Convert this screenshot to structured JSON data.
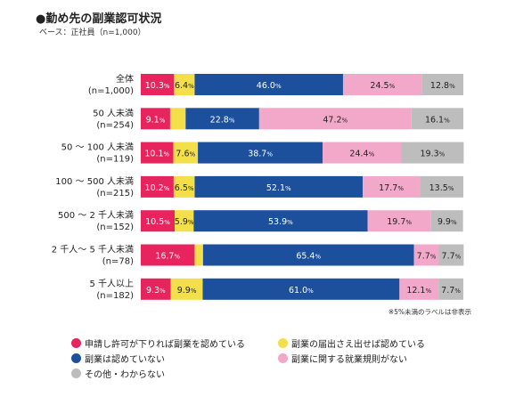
{
  "title": "●勤め先の副業認可状況",
  "subtitle": "ベース：正社員（n=1,000）",
  "note": "※5%未満のラベルは非表示",
  "colors": {
    "申請し許可が下りれば副業を認めている": "#e8245f",
    "副業の届出さえ出せば認めている": "#f2df4a",
    "副業は認めていない": "#1c4f9c",
    "副業に関する就業規則がない": "#f2a8c8",
    "その他・わからない": "#bdbdbd"
  },
  "chart_data": {
    "type": "bar",
    "orientation": "horizontal",
    "stacked": true,
    "percent_stacked": true,
    "categories": [
      [
        "全体",
        "(n=1,000)"
      ],
      [
        "50 人未満",
        "(n=254)"
      ],
      [
        "50 ～ 100 人未満",
        "(n=119)"
      ],
      [
        "100 ～ 500 人未満",
        "(n=215)"
      ],
      [
        "500 ～ 2 千人未満",
        "(n=152)"
      ],
      [
        "2 千人～ 5 千人未満",
        "(n=78)"
      ],
      [
        "5 千人以上",
        "(n=182)"
      ]
    ],
    "series": [
      {
        "name": "申請し許可が下りれば副業を認めている",
        "values": [
          10.3,
          9.1,
          10.1,
          10.2,
          10.5,
          16.7,
          9.3
        ]
      },
      {
        "name": "副業の届出さえ出せば認めている",
        "values": [
          6.4,
          4.8,
          7.6,
          6.5,
          5.9,
          2.6,
          9.9
        ]
      },
      {
        "name": "副業は認めていない",
        "values": [
          46.0,
          22.8,
          38.7,
          52.1,
          53.9,
          65.4,
          61.0
        ]
      },
      {
        "name": "副業に関する就業規則がない",
        "values": [
          24.5,
          47.2,
          24.4,
          17.7,
          19.7,
          7.7,
          12.1
        ]
      },
      {
        "name": "その他・わからない",
        "values": [
          12.8,
          16.1,
          19.3,
          13.5,
          9.9,
          7.7,
          7.7
        ]
      }
    ],
    "label_threshold": 5,
    "xlim": [
      0,
      100
    ],
    "legend": "bottom"
  }
}
